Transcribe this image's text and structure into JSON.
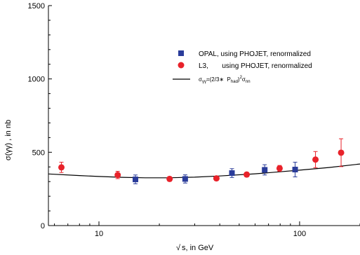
{
  "chart_data": {
    "type": "scatter",
    "title": "",
    "xlabel": "s, in GeV",
    "ylabel": "σ(γγ) , in nb",
    "xscale": "log",
    "xlim": [
      5.6,
      200
    ],
    "ylim": [
      0,
      1500
    ],
    "yticks": [
      0,
      500,
      1000,
      1500
    ],
    "xticks_labeled": [
      10,
      100
    ],
    "grid": false,
    "legend_position": "top-right",
    "series": [
      {
        "name": "OPAL, using PHOJET, renormalized",
        "marker": "square",
        "color": "#2a3c9a",
        "points": [
          {
            "x": 15.2,
            "y": 315,
            "err": 30
          },
          {
            "x": 26.9,
            "y": 318,
            "err": 28
          },
          {
            "x": 46.0,
            "y": 358,
            "err": 30
          },
          {
            "x": 67.0,
            "y": 380,
            "err": 35
          },
          {
            "x": 95.0,
            "y": 382,
            "err": 50
          }
        ]
      },
      {
        "name": "L3,       using PHOJET, renormalized",
        "marker": "circle",
        "color": "#e8222a",
        "points": [
          {
            "x": 6.5,
            "y": 397,
            "err": 35
          },
          {
            "x": 12.4,
            "y": 345,
            "err": 25
          },
          {
            "x": 22.5,
            "y": 318,
            "err": 15
          },
          {
            "x": 38.5,
            "y": 322,
            "err": 15
          },
          {
            "x": 54.5,
            "y": 348,
            "err": 15
          },
          {
            "x": 79.5,
            "y": 390,
            "err": 20
          },
          {
            "x": 120.0,
            "y": 450,
            "err": 55
          },
          {
            "x": 161.0,
            "y": 497,
            "err": 95
          }
        ]
      },
      {
        "name_parts": {
          "pre": "σ",
          "pre_sub": "γγ",
          "mid": "=(2/3∗  P",
          "mid_sub": "had",
          "post": ")",
          "post_sup": "2",
          "end": "σ",
          "end_sub": "nn"
        },
        "type": "line",
        "color": "#000000",
        "x": [
          5.6,
          8,
          10,
          13,
          17,
          22,
          30,
          40,
          60,
          80,
          100,
          140,
          200
        ],
        "y": [
          352,
          341,
          335,
          329,
          326,
          326,
          330,
          338,
          353,
          367,
          378,
          396,
          420
        ]
      }
    ]
  }
}
